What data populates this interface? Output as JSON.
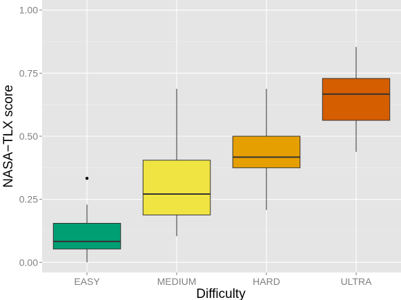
{
  "chart_data": {
    "type": "box",
    "xlabel": "Difficulty",
    "ylabel": "NASA−TLX score",
    "categories": [
      "EASY",
      "MEDIUM",
      "HARD",
      "ULTRA"
    ],
    "ylim": [
      -0.04,
      1.04
    ],
    "yticks": [
      0.0,
      0.25,
      0.5,
      0.75,
      1.0
    ],
    "ytick_labels": [
      "0.00",
      "0.25",
      "0.50",
      "0.75",
      "1.00"
    ],
    "grid": true,
    "legend": "none",
    "boxes": [
      {
        "category": "EASY",
        "whisker_low": 0.0,
        "q1": 0.053,
        "median": 0.083,
        "q3": 0.155,
        "whisker_high": 0.229,
        "outliers": [
          0.333
        ],
        "color": "#009E73"
      },
      {
        "category": "MEDIUM",
        "whisker_low": 0.104,
        "q1": 0.188,
        "median": 0.271,
        "q3": 0.405,
        "whisker_high": 0.688,
        "outliers": [],
        "color": "#F0E442"
      },
      {
        "category": "HARD",
        "whisker_low": 0.208,
        "q1": 0.375,
        "median": 0.417,
        "q3": 0.5,
        "whisker_high": 0.688,
        "outliers": [],
        "color": "#E69F00"
      },
      {
        "category": "ULTRA",
        "whisker_low": 0.438,
        "q1": 0.563,
        "median": 0.667,
        "q3": 0.729,
        "whisker_high": 0.854,
        "outliers": [],
        "color": "#D55E00"
      }
    ],
    "panel_background": "#E5E5E5",
    "grid_color": "#FFFFFF"
  }
}
